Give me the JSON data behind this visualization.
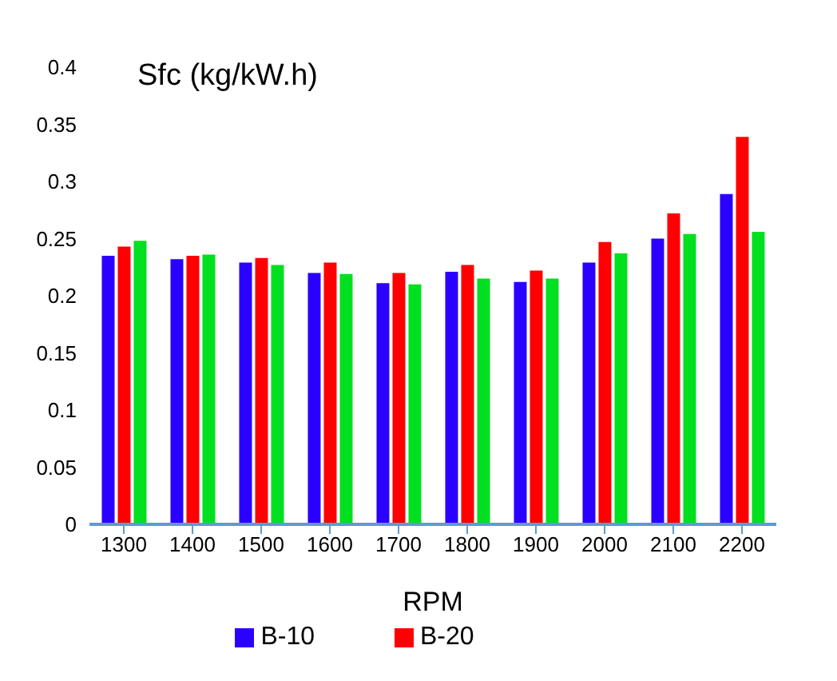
{
  "chart_data": {
    "type": "bar",
    "ylabel": "Sfc (kg/kW.h)",
    "xlabel": "RPM",
    "categories": [
      "1300",
      "1400",
      "1500",
      "1600",
      "1700",
      "1800",
      "1900",
      "2000",
      "2100",
      "2200"
    ],
    "series": [
      {
        "name": "B-10",
        "color": "#2a00ff",
        "values": [
          0.235,
          0.232,
          0.229,
          0.22,
          0.211,
          0.221,
          0.212,
          0.229,
          0.25,
          0.289
        ]
      },
      {
        "name": "B-20",
        "color": "#ff0000",
        "values": [
          0.243,
          0.235,
          0.233,
          0.229,
          0.22,
          0.227,
          0.222,
          0.247,
          0.272,
          0.339
        ]
      },
      {
        "color": "#00e020",
        "values": [
          0.248,
          0.236,
          0.227,
          0.219,
          0.21,
          0.215,
          0.215,
          0.237,
          0.254,
          0.256
        ]
      }
    ],
    "ylim": [
      0,
      0.4
    ],
    "yticks": [
      0,
      0.05,
      0.1,
      0.15,
      0.2,
      0.25,
      0.3,
      0.35,
      0.4
    ],
    "grid": false,
    "legend": "bottom"
  }
}
